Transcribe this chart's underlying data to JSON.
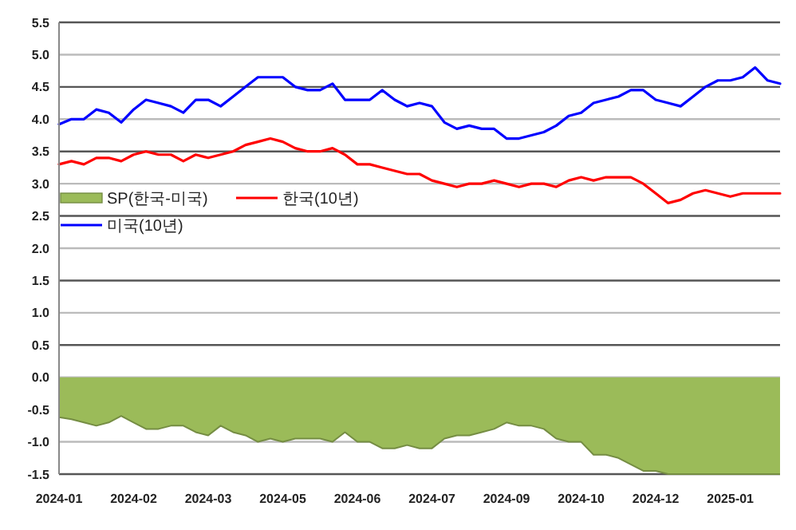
{
  "chart_data": {
    "type": "line",
    "categories": [
      "2024-01",
      null,
      null,
      null,
      null,
      null,
      "2024-02",
      null,
      null,
      null,
      null,
      null,
      "2024-03",
      null,
      null,
      null,
      null,
      null,
      "2024-05",
      null,
      null,
      null,
      null,
      null,
      "2024-06",
      null,
      null,
      null,
      null,
      null,
      "2024-07",
      null,
      null,
      null,
      null,
      null,
      "2024-09",
      null,
      null,
      null,
      null,
      null,
      "2024-10",
      null,
      null,
      null,
      null,
      null,
      "2024-12",
      null,
      null,
      null,
      null,
      null,
      "2025-01",
      null,
      null,
      null,
      null
    ],
    "series": [
      {
        "name": "SP(한국-미국)",
        "type": "area",
        "color": "#9bbb59",
        "values": [
          -0.62,
          -0.65,
          -0.7,
          -0.75,
          -0.7,
          -0.6,
          -0.7,
          -0.8,
          -0.8,
          -0.75,
          -0.75,
          -0.85,
          -0.9,
          -0.75,
          -0.85,
          -0.9,
          -1.0,
          -0.95,
          -1.0,
          -0.95,
          -0.95,
          -0.95,
          -1.0,
          -0.85,
          -1.0,
          -1.0,
          -1.1,
          -1.1,
          -1.05,
          -1.1,
          -1.1,
          -0.95,
          -0.9,
          -0.9,
          -0.85,
          -0.8,
          -0.7,
          -0.75,
          -0.75,
          -0.8,
          -0.95,
          -1.0,
          -1.0,
          -1.2,
          -1.2,
          -1.25,
          -1.35,
          -1.45,
          -1.45,
          -1.5,
          -1.5,
          -1.5,
          -1.5,
          -1.5,
          -1.5,
          -1.5,
          -1.5,
          -1.5,
          -1.5
        ]
      },
      {
        "name": "한국(10년)",
        "color": "#ff0000",
        "values": [
          3.3,
          3.35,
          3.3,
          3.4,
          3.4,
          3.35,
          3.45,
          3.5,
          3.45,
          3.45,
          3.35,
          3.45,
          3.4,
          3.45,
          3.5,
          3.6,
          3.65,
          3.7,
          3.65,
          3.55,
          3.5,
          3.5,
          3.55,
          3.45,
          3.3,
          3.3,
          3.25,
          3.2,
          3.15,
          3.15,
          3.05,
          3.0,
          2.95,
          3.0,
          3.0,
          3.05,
          3.0,
          2.95,
          3.0,
          3.0,
          2.95,
          3.05,
          3.1,
          3.05,
          3.1,
          3.1,
          3.1,
          3.0,
          2.85,
          2.7,
          2.75,
          2.85,
          2.9,
          2.85,
          2.8,
          2.85,
          2.85,
          2.85,
          2.85
        ]
      },
      {
        "name": "미국(10년)",
        "color": "#0000ff",
        "values": [
          3.92,
          4.0,
          4.0,
          4.15,
          4.1,
          3.95,
          4.15,
          4.3,
          4.25,
          4.2,
          4.1,
          4.3,
          4.3,
          4.2,
          4.35,
          4.5,
          4.65,
          4.65,
          4.65,
          4.5,
          4.45,
          4.45,
          4.55,
          4.3,
          4.3,
          4.3,
          4.45,
          4.3,
          4.2,
          4.25,
          4.2,
          3.95,
          3.85,
          3.9,
          3.85,
          3.85,
          3.7,
          3.7,
          3.75,
          3.8,
          3.9,
          4.05,
          4.1,
          4.25,
          4.3,
          4.35,
          4.45,
          4.45,
          4.3,
          4.25,
          4.2,
          4.35,
          4.5,
          4.6,
          4.6,
          4.65,
          4.8,
          4.6,
          4.55
        ]
      }
    ],
    "ylim": [
      -1.5,
      5.5
    ],
    "yticks": [
      {
        "value": -1.5,
        "label": "-1.5"
      },
      {
        "value": -1,
        "label": "-1.0"
      },
      {
        "value": -0.5,
        "label": "-0.5"
      },
      {
        "value": 0,
        "label": "0.0"
      },
      {
        "value": 0.5,
        "label": "0.5"
      },
      {
        "value": 1,
        "label": "1.0"
      },
      {
        "value": 1.5,
        "label": "1.5"
      },
      {
        "value": 2,
        "label": "2.0"
      },
      {
        "value": 2.5,
        "label": "2.5"
      },
      {
        "value": 3,
        "label": "3.0"
      },
      {
        "value": 3.5,
        "label": "3.5"
      },
      {
        "value": 4,
        "label": "4.0"
      },
      {
        "value": 4.5,
        "label": "4.5"
      },
      {
        "value": 5,
        "label": "5.0"
      },
      {
        "value": 5.5,
        "label": "5.5"
      }
    ],
    "grid": "y",
    "legend": "left"
  }
}
